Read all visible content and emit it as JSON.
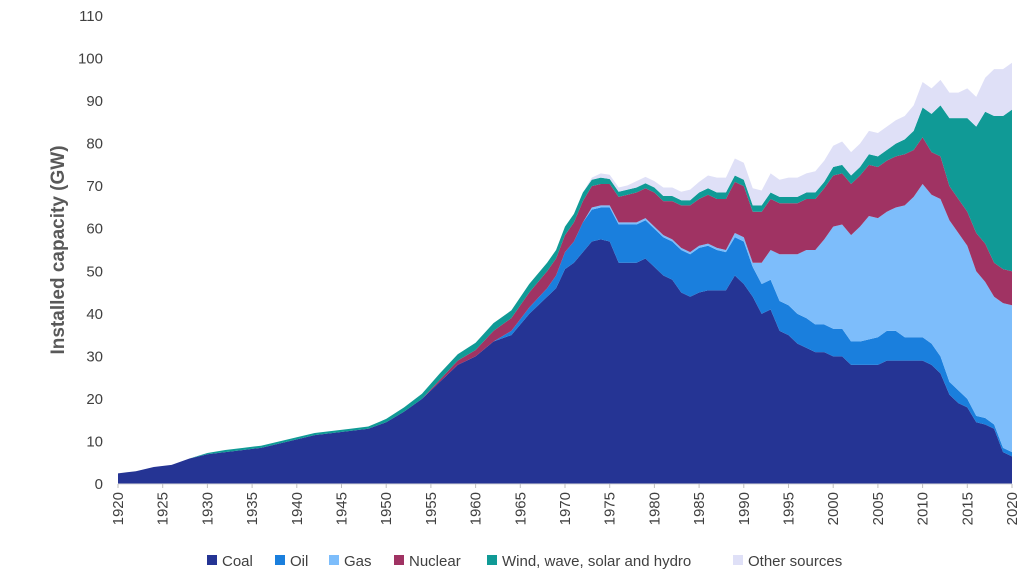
{
  "chart_data": {
    "type": "area",
    "stacked": true,
    "ylabel": "Installed capacity (GW)",
    "ylim": [
      0,
      110
    ],
    "yticks": [
      "0",
      "10",
      "20",
      "30",
      "40",
      "50",
      "60",
      "70",
      "80",
      "90",
      "100",
      "110"
    ],
    "xlim": [
      1920,
      2020
    ],
    "xticks": [
      "1920",
      "1925",
      "1930",
      "1935",
      "1940",
      "1945",
      "1950",
      "1955",
      "1960",
      "1965",
      "1970",
      "1975",
      "1980",
      "1985",
      "1990",
      "1995",
      "2000",
      "2005",
      "2010",
      "2015",
      "2020"
    ],
    "grid": false,
    "legend_position": "bottom",
    "x": [
      1920,
      1922,
      1924,
      1926,
      1928,
      1930,
      1932,
      1934,
      1936,
      1938,
      1940,
      1942,
      1944,
      1946,
      1948,
      1950,
      1952,
      1954,
      1956,
      1958,
      1960,
      1962,
      1964,
      1966,
      1968,
      1969,
      1970,
      1971,
      1972,
      1973,
      1974,
      1975,
      1976,
      1977,
      1978,
      1979,
      1980,
      1981,
      1982,
      1983,
      1984,
      1985,
      1986,
      1987,
      1988,
      1989,
      1990,
      1991,
      1992,
      1993,
      1994,
      1995,
      1996,
      1997,
      1998,
      1999,
      2000,
      2001,
      2002,
      2003,
      2004,
      2005,
      2006,
      2007,
      2008,
      2009,
      2010,
      2011,
      2012,
      2013,
      2014,
      2015,
      2016,
      2017,
      2018,
      2019,
      2020
    ],
    "series": [
      {
        "name": "Coal",
        "color": "#253494",
        "values": [
          2.5,
          3,
          4,
          4.5,
          6,
          7,
          7.5,
          8,
          8.5,
          9.5,
          10.5,
          11.5,
          12,
          12.5,
          13,
          14.5,
          17,
          20,
          24,
          28,
          30,
          33.5,
          35,
          40,
          44,
          46,
          50.5,
          52,
          54.5,
          57,
          57.5,
          57,
          52,
          52,
          52,
          53,
          51,
          49,
          48,
          45,
          44,
          45,
          45.5,
          45.5,
          45.5,
          49,
          47,
          44,
          40,
          41,
          36,
          35,
          33,
          32,
          31,
          31,
          30,
          30,
          28,
          28,
          28,
          28,
          29,
          29,
          29,
          29,
          29,
          28,
          26,
          21,
          19,
          18,
          14.5,
          14,
          13,
          7.5,
          6.5
        ]
      },
      {
        "name": "Oil",
        "color": "#1a7fdd",
        "values": [
          0,
          0,
          0,
          0,
          0,
          0,
          0,
          0,
          0,
          0,
          0,
          0,
          0,
          0,
          0,
          0,
          0,
          0,
          0,
          0,
          0,
          0,
          1,
          1.5,
          2,
          3,
          4,
          5,
          7,
          7.5,
          7.5,
          8,
          9,
          9,
          9,
          9,
          9,
          9,
          9,
          10,
          10,
          10.5,
          10.5,
          9.5,
          9,
          9,
          10,
          7,
          7,
          7,
          7,
          7,
          7,
          7,
          6.5,
          6.5,
          6.5,
          6.5,
          5.5,
          5.5,
          6,
          6.5,
          7,
          7,
          5.5,
          5.5,
          5.5,
          5,
          4,
          3,
          3,
          2,
          1.5,
          1.5,
          1,
          1,
          1
        ]
      },
      {
        "name": "Gas",
        "color": "#7dbdfb",
        "values": [
          0,
          0,
          0,
          0,
          0,
          0,
          0,
          0,
          0,
          0,
          0,
          0,
          0,
          0,
          0,
          0,
          0,
          0,
          0,
          0,
          0,
          0,
          0,
          0,
          0,
          0,
          0,
          0,
          0,
          0.5,
          0.5,
          0.5,
          0.5,
          0.5,
          0.5,
          0.5,
          0.5,
          0.5,
          0.5,
          0.5,
          0.5,
          0.5,
          0.5,
          0.5,
          0.5,
          1,
          1,
          1,
          5,
          7,
          11,
          12,
          14,
          16,
          17.5,
          20,
          24,
          24.5,
          25,
          27,
          29,
          28,
          28,
          29,
          31,
          33,
          36,
          35,
          37,
          38,
          37,
          36,
          34,
          32,
          30,
          34,
          34.5
        ]
      },
      {
        "name": "Nuclear",
        "color": "#a03363",
        "values": [
          0,
          0,
          0,
          0,
          0,
          0,
          0,
          0,
          0,
          0,
          0,
          0,
          0,
          0,
          0,
          0,
          0,
          0,
          0.5,
          1,
          1.5,
          2.5,
          3,
          3.5,
          4,
          4,
          4,
          4.5,
          5,
          5,
          5,
          5,
          6,
          6.5,
          7,
          7,
          8,
          8,
          9,
          10,
          11,
          11,
          11.5,
          11.5,
          12,
          12,
          12,
          12,
          12,
          12,
          12,
          12,
          12,
          12,
          12,
          12,
          12,
          12,
          12,
          12,
          12,
          12,
          12,
          12,
          12,
          11,
          11,
          10,
          10,
          8,
          8,
          8,
          9,
          9,
          8,
          8,
          8
        ]
      },
      {
        "name": "Wind, wave, solar and hydro",
        "color": "#109a96",
        "values": [
          0,
          0,
          0,
          0,
          0,
          0.3,
          0.5,
          0.5,
          0.5,
          0.5,
          0.5,
          0.5,
          0.5,
          0.5,
          0.5,
          0.8,
          1,
          1.2,
          1.5,
          1.5,
          1.7,
          1.8,
          1.8,
          2,
          2,
          2,
          2,
          2,
          2,
          1.5,
          1.5,
          1.2,
          1.2,
          1.2,
          1.2,
          1.2,
          1.2,
          1.2,
          1.2,
          1.2,
          1.2,
          1.5,
          1.5,
          1.5,
          1.5,
          1.5,
          1.5,
          1.5,
          1.5,
          1.5,
          1.5,
          1.5,
          1.5,
          1.5,
          1.5,
          1.5,
          2,
          2,
          2,
          2,
          2.5,
          2.5,
          2.5,
          3,
          3.5,
          4.5,
          7,
          9,
          12,
          16,
          19,
          22,
          25,
          31,
          34.5,
          36,
          38
        ]
      },
      {
        "name": "Other sources",
        "color": "#dfe0f7",
        "values": [
          0,
          0,
          0,
          0,
          0,
          0,
          0,
          0,
          0,
          0,
          0,
          0,
          0,
          0,
          0,
          0,
          0,
          0,
          0,
          0,
          0,
          0,
          0,
          0,
          0,
          0,
          0,
          0,
          0,
          0.5,
          1,
          1,
          1,
          1,
          1.5,
          1.5,
          1.5,
          2,
          2,
          2,
          2.5,
          2.5,
          3,
          3.5,
          3.5,
          4,
          4,
          4,
          3.5,
          4.5,
          4,
          4.5,
          4.5,
          4.5,
          5,
          5,
          5,
          5.5,
          5.5,
          5.5,
          5.5,
          5.5,
          5.5,
          5.5,
          5.5,
          6,
          6,
          6,
          6,
          6,
          6,
          7,
          7,
          8,
          11,
          11,
          11
        ]
      }
    ],
    "legend": [
      "Coal",
      "Oil",
      "Gas",
      "Nuclear",
      "Wind, wave, solar and hydro",
      "Other sources"
    ]
  }
}
